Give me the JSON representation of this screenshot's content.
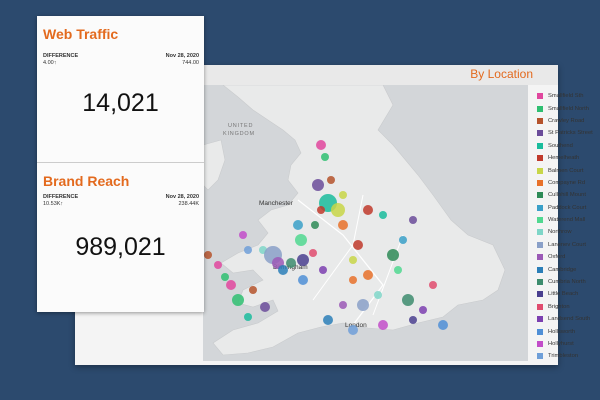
{
  "web_traffic": {
    "title": "Web Traffic",
    "difference_label": "DIFFERENCE",
    "difference_value": "4.00↑",
    "date": "Nov 28, 2020",
    "date_value": "744.00",
    "value": "14,021"
  },
  "brand_reach": {
    "title": "Brand Reach",
    "difference_label": "DIFFERENCE",
    "difference_value": "10.53K↑",
    "date": "Nov 28, 2020",
    "date_value": "238.44K",
    "value": "989,021"
  },
  "map": {
    "title": "By Location",
    "labels": {
      "united": "UNITED",
      "kingdom": "KINGDOM",
      "manchester": "Manchester",
      "birmingham": "Birmingham",
      "london": "London"
    }
  },
  "legend": [
    {
      "label": "Smallfield Sth",
      "color": "#e0479e"
    },
    {
      "label": "Smallfield North",
      "color": "#2fbf71"
    },
    {
      "label": "Crawley Road",
      "color": "#b5532c"
    },
    {
      "label": "St Patricks Street",
      "color": "#6b4c9a"
    },
    {
      "label": "Southend",
      "color": "#1abc9c"
    },
    {
      "label": "Hemelheath",
      "color": "#c0392b"
    },
    {
      "label": "Balmen Court",
      "color": "#c8d648"
    },
    {
      "label": "Compayne Rd",
      "color": "#e8712a"
    },
    {
      "label": "Cullohill Mount",
      "color": "#2e8b57"
    },
    {
      "label": "Paddock Court",
      "color": "#3aa0c8"
    },
    {
      "label": "Waterend Mall",
      "color": "#50d890"
    },
    {
      "label": "Northrow",
      "color": "#7fd6c8"
    },
    {
      "label": "Lanenev Court",
      "color": "#8aa0c8"
    },
    {
      "label": "Oxford",
      "color": "#9b59b6"
    },
    {
      "label": "Cambridge",
      "color": "#2c7fb8"
    },
    {
      "label": "Cumbria North",
      "color": "#3d8c6e"
    },
    {
      "label": "Little Beach",
      "color": "#4a3f8f"
    },
    {
      "label": "Brighton",
      "color": "#e04c6f"
    },
    {
      "label": "Landsend South",
      "color": "#7c3fb0"
    },
    {
      "label": "Hollsworth",
      "color": "#4f8fd6"
    },
    {
      "label": "Hollyhurst",
      "color": "#c24dc9"
    },
    {
      "label": "Trimbleston",
      "color": "#6f9fd8"
    }
  ]
}
